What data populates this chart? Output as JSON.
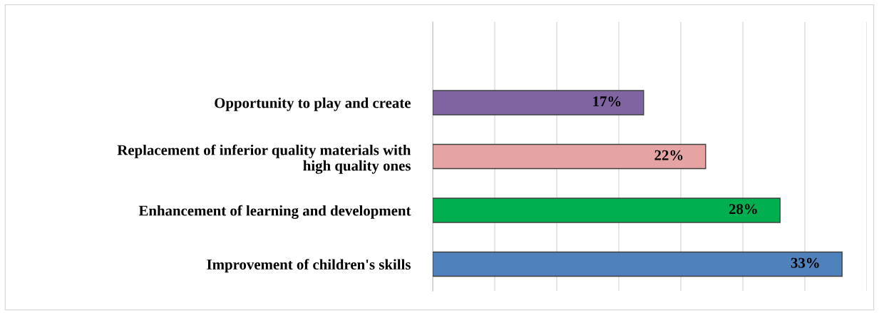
{
  "chart_data": {
    "type": "bar",
    "orientation": "horizontal",
    "categories": [
      null,
      "Opportunity to play and create",
      "Replacement of inferior quality materials with\nhigh quality ones",
      "Enhancement of learning and development",
      "Improvement of children's skills"
    ],
    "values": [
      null,
      17,
      22,
      28,
      33
    ],
    "value_labels": [
      null,
      "17%",
      "22%",
      "28%",
      "33%"
    ],
    "colors": [
      "#8064a2",
      "#8064a2",
      "#e6a3a3",
      "#00b050",
      "#4f81bd"
    ],
    "xlim": [
      0,
      35
    ],
    "xticks": [
      {
        "value": 0,
        "label": null
      },
      {
        "value": 5,
        "label": null
      },
      {
        "value": 10,
        "label": null
      },
      {
        "value": 15,
        "label": null
      },
      {
        "value": 20,
        "label": null
      },
      {
        "value": 25,
        "label": null
      },
      {
        "value": 30,
        "label": null
      },
      {
        "value": 35,
        "label": null
      }
    ],
    "grid": "x",
    "tick_labels": "y"
  }
}
